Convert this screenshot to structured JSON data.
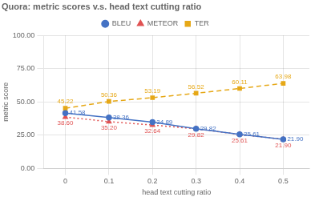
{
  "chart_data": {
    "type": "line",
    "title": "Quora: metric scores v.s. head text cutting ratio",
    "xlabel": "head text cutting ratio",
    "ylabel": "metric score",
    "x": [
      0,
      0.1,
      0.2,
      0.3,
      0.4,
      0.5
    ],
    "series": [
      {
        "name": "BLEU",
        "color": "#4472c4",
        "line_style": "solid",
        "marker": "circle",
        "values": [
          41.58,
          38.36,
          34.89,
          29.82,
          25.61,
          21.9
        ],
        "value_labels": [
          "41.58",
          "38.36",
          "34.89",
          "29.82",
          "25.61",
          "21.90"
        ]
      },
      {
        "name": "METEOR",
        "color": "#e05252",
        "line_style": "dotted",
        "marker": "triangle",
        "values": [
          38.6,
          35.2,
          32.64,
          29.82,
          25.61,
          21.9
        ],
        "value_labels": [
          "38.60",
          "35.20",
          "32.64",
          "29.82",
          "25.61",
          "21.90"
        ]
      },
      {
        "name": "TER",
        "color": "#e6a817",
        "line_style": "dashed",
        "marker": "square",
        "values": [
          45.22,
          50.36,
          53.19,
          56.52,
          60.11,
          63.98
        ],
        "value_labels": [
          "45.22",
          "50.36",
          "53.19",
          "56.52",
          "60.11",
          "63.98"
        ]
      }
    ],
    "xlim": [
      -0.05,
      0.56
    ],
    "xticks": [
      0,
      0.1,
      0.2,
      0.3,
      0.4,
      0.5
    ],
    "ylim": [
      0,
      100
    ],
    "yticks": [
      {
        "value": 0,
        "label": "0.00"
      },
      {
        "value": 25,
        "label": "25.00"
      },
      {
        "value": 50,
        "label": "50.00"
      },
      {
        "value": 75,
        "label": "75.00"
      },
      {
        "value": 100,
        "label": "100.00"
      }
    ],
    "grid": true,
    "legend": "top",
    "data_labels": true
  }
}
